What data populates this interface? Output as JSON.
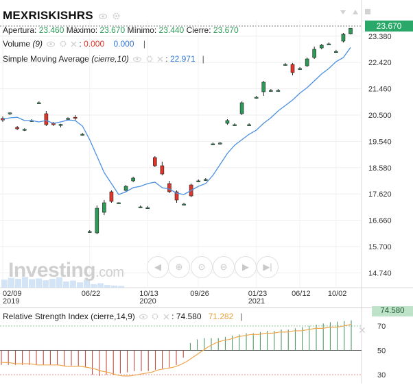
{
  "header": {
    "symbol": "MEXRISKISHRS",
    "ohlc": {
      "open_label": "Apertura:",
      "open": "23.460",
      "high_label": "Máximo:",
      "high": "23.670",
      "low_label": "Mínimo:",
      "low": "23.440",
      "close_label": "Cierre:",
      "close": "23.670"
    },
    "volume": {
      "label": "Volume",
      "param": "(9)",
      "v1": "0.000",
      "v2": "0.000"
    },
    "sma": {
      "label": "Simple Moving Average",
      "param": "(cierre,10)",
      "value": "22.971"
    },
    "rsi": {
      "label": "Relative Strength Index",
      "param": "(cierre,14,9)",
      "v1": "74.580",
      "v2": "71.282"
    }
  },
  "watermark": {
    "brand": "Investing",
    "suffix": ".com"
  },
  "current_price_label": "23.670",
  "current_rsi_label": "74.580",
  "colors": {
    "up": "#2e9a58",
    "down": "#e0352b",
    "sma": "#4a90e2",
    "rsi_signal": "#f0a54a",
    "rsi_up_bars": "#3f8f5b",
    "rsi_down_bars": "#c0392b"
  },
  "nav_icons": [
    "arrow-left-icon",
    "zoom-in-icon",
    "zoom-reset-icon",
    "zoom-out-icon",
    "arrow-right-icon",
    "arrow-right-end-icon"
  ],
  "chart_data": [
    {
      "type": "candlestick",
      "title": "MEXRISKISHRS",
      "x_tick_labels": [
        "02/09",
        "06/22",
        "10/13",
        "09/26",
        "01/23",
        "06/12",
        "10/02"
      ],
      "x_tick_years": [
        "2019",
        "",
        "2020",
        "",
        "2021",
        "",
        ""
      ],
      "y_ticks": [
        14.74,
        15.7,
        16.66,
        17.62,
        18.58,
        19.54,
        20.5,
        21.46,
        22.42,
        23.38
      ],
      "ylim": [
        14.2,
        23.95
      ],
      "candles": [
        {
          "o": 20.38,
          "h": 20.45,
          "l": 20.25,
          "c": 20.32
        },
        {
          "o": 20.55,
          "h": 20.6,
          "l": 20.5,
          "c": 20.58
        },
        {
          "o": 20.05,
          "h": 20.1,
          "l": 19.95,
          "c": 20.0
        },
        {
          "o": 19.98,
          "h": 20.02,
          "l": 19.92,
          "c": 19.98
        },
        {
          "o": 20.3,
          "h": 20.35,
          "l": 20.25,
          "c": 20.3
        },
        {
          "o": 20.95,
          "h": 21.0,
          "l": 20.9,
          "c": 20.95
        },
        {
          "o": 20.55,
          "h": 20.65,
          "l": 20.1,
          "c": 20.15
        },
        {
          "o": 20.2,
          "h": 20.25,
          "l": 20.1,
          "c": 20.15
        },
        {
          "o": 20.12,
          "h": 20.18,
          "l": 20.05,
          "c": 20.16
        },
        {
          "o": 20.35,
          "h": 20.42,
          "l": 20.3,
          "c": 20.38
        },
        {
          "o": 20.42,
          "h": 20.5,
          "l": 20.3,
          "c": 20.38
        },
        {
          "o": 19.8,
          "h": 19.85,
          "l": 19.75,
          "c": 19.8
        },
        {
          "o": 16.25,
          "h": 16.3,
          "l": 16.2,
          "c": 16.25
        },
        {
          "o": 16.2,
          "h": 17.2,
          "l": 16.15,
          "c": 17.1
        },
        {
          "o": 16.95,
          "h": 17.4,
          "l": 16.85,
          "c": 17.3
        },
        {
          "o": 17.7,
          "h": 17.75,
          "l": 17.3,
          "c": 17.35
        },
        {
          "o": 17.3,
          "h": 17.32,
          "l": 17.27,
          "c": 17.3
        },
        {
          "o": 17.75,
          "h": 17.95,
          "l": 17.7,
          "c": 17.9
        },
        {
          "o": 18.1,
          "h": 18.25,
          "l": 18.05,
          "c": 18.2
        },
        {
          "o": 17.15,
          "h": 17.2,
          "l": 17.1,
          "c": 17.15
        },
        {
          "o": 17.12,
          "h": 17.18,
          "l": 17.08,
          "c": 17.12
        },
        {
          "o": 18.95,
          "h": 19.0,
          "l": 18.6,
          "c": 18.65
        },
        {
          "o": 18.65,
          "h": 18.8,
          "l": 18.3,
          "c": 18.35
        },
        {
          "o": 18.0,
          "h": 18.1,
          "l": 17.65,
          "c": 17.7
        },
        {
          "o": 17.7,
          "h": 17.75,
          "l": 17.3,
          "c": 17.4
        },
        {
          "o": 17.25,
          "h": 17.3,
          "l": 17.2,
          "c": 17.25
        },
        {
          "o": 17.95,
          "h": 18.0,
          "l": 17.5,
          "c": 17.55
        },
        {
          "o": 18.1,
          "h": 18.15,
          "l": 18.05,
          "c": 18.1
        },
        {
          "o": 18.15,
          "h": 18.2,
          "l": 18.1,
          "c": 18.15
        },
        {
          "o": 19.45,
          "h": 19.5,
          "l": 19.4,
          "c": 19.45
        },
        {
          "o": 19.48,
          "h": 19.52,
          "l": 19.42,
          "c": 19.48
        },
        {
          "o": 20.2,
          "h": 20.35,
          "l": 20.15,
          "c": 20.3
        },
        {
          "o": 20.15,
          "h": 20.2,
          "l": 20.1,
          "c": 20.15
        },
        {
          "o": 20.55,
          "h": 21.0,
          "l": 20.5,
          "c": 20.95
        },
        {
          "o": 20.15,
          "h": 20.2,
          "l": 20.1,
          "c": 20.15
        },
        {
          "o": 21.15,
          "h": 21.2,
          "l": 21.1,
          "c": 21.15
        },
        {
          "o": 21.35,
          "h": 21.75,
          "l": 21.2,
          "c": 21.7
        },
        {
          "o": 21.4,
          "h": 21.45,
          "l": 21.35,
          "c": 21.4
        },
        {
          "o": 21.4,
          "h": 21.45,
          "l": 21.35,
          "c": 21.4
        },
        {
          "o": 22.35,
          "h": 22.4,
          "l": 22.3,
          "c": 22.35
        },
        {
          "o": 22.35,
          "h": 22.4,
          "l": 21.95,
          "c": 22.05
        },
        {
          "o": 22.2,
          "h": 22.25,
          "l": 22.15,
          "c": 22.2
        },
        {
          "o": 22.3,
          "h": 22.6,
          "l": 22.25,
          "c": 22.55
        },
        {
          "o": 22.6,
          "h": 23.0,
          "l": 22.55,
          "c": 22.9
        },
        {
          "o": 22.95,
          "h": 23.1,
          "l": 22.9,
          "c": 23.05
        },
        {
          "o": 23.1,
          "h": 23.15,
          "l": 23.05,
          "c": 23.1
        },
        {
          "o": 22.82,
          "h": 22.88,
          "l": 22.78,
          "c": 22.82
        },
        {
          "o": 23.2,
          "h": 23.5,
          "l": 23.15,
          "c": 23.45
        },
        {
          "o": 23.46,
          "h": 23.67,
          "l": 23.44,
          "c": 23.67
        }
      ],
      "sma_10": [
        20.35,
        20.4,
        20.42,
        20.3,
        20.3,
        20.25,
        20.3,
        20.2,
        20.25,
        20.32,
        20.3,
        20.1,
        19.6,
        19.0,
        18.4,
        18.0,
        17.6,
        17.7,
        17.85,
        17.9,
        18.0,
        18.05,
        17.85,
        17.8,
        17.65,
        17.6,
        17.75,
        17.9,
        18.0,
        18.3,
        18.7,
        19.1,
        19.4,
        19.6,
        19.8,
        19.95,
        20.2,
        20.4,
        20.65,
        20.85,
        21.05,
        21.3,
        21.5,
        21.75,
        22.0,
        22.2,
        22.45,
        22.6,
        22.97
      ],
      "volume_bars": [
        0.45,
        0.55,
        0.5,
        0.6,
        0.48,
        0.52,
        0.42,
        0.5,
        0.58,
        0.35,
        0.4,
        0.3,
        0.45,
        0.2,
        0.25,
        0.15,
        0.12,
        0.1
      ]
    },
    {
      "type": "rsi",
      "title": "Relative Strength Index (cierre,14,9)",
      "y_ticks": [
        30,
        50,
        70
      ],
      "ylim": [
        25,
        80
      ],
      "overbought": 70,
      "midline": 50,
      "rsi_value": 74.58,
      "signal_value": 71.282,
      "rsi": [
        38,
        38,
        38,
        38,
        38,
        38,
        38,
        38,
        38,
        37,
        37,
        37,
        36,
        30,
        29,
        30,
        30,
        31,
        32,
        33,
        33,
        33,
        34,
        35,
        36,
        38,
        44,
        56,
        59,
        60,
        60,
        60,
        61,
        62,
        63,
        64,
        64,
        65,
        66,
        66,
        67,
        67,
        68,
        69,
        70,
        71,
        72,
        73,
        73.5,
        74,
        74.58
      ],
      "signal": [
        40,
        40,
        39,
        39,
        39,
        38,
        38,
        38,
        38,
        37,
        37,
        37,
        36,
        35,
        33,
        32,
        30,
        29,
        29,
        30,
        31,
        32,
        34,
        35,
        36,
        38,
        41,
        45,
        49,
        53,
        56,
        58,
        59,
        61,
        62,
        63,
        63,
        64,
        64,
        65,
        65,
        66,
        66,
        67,
        68,
        68,
        69,
        69,
        70,
        71.282
      ]
    }
  ]
}
